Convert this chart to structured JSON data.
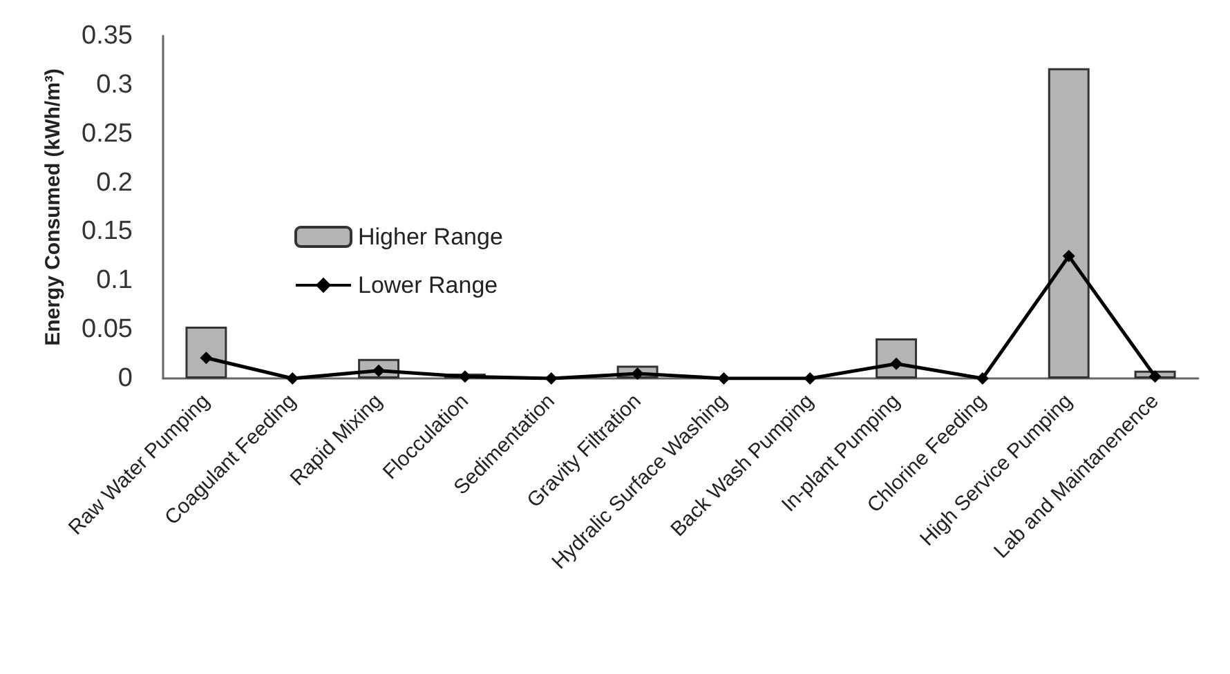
{
  "chart_data": {
    "type": "bar",
    "ylabel": "Energy Consumed (kWh/m³)",
    "categories": [
      "Raw Water Pumping",
      "Coagulant Feeding",
      "Rapid Mixing",
      "Flocculation",
      "Sedimentation",
      "Gravity Filtration",
      "Hydralic Surface Washing",
      "Back Wash Pumping",
      "In-plant Pumping",
      "Chlorine Feeding",
      "High Service Pumping",
      "Lab and Maintanenence"
    ],
    "series": [
      {
        "name": "Higher Range",
        "color": "#b4b4b4",
        "values": [
          0.053,
          0,
          0.02,
          0.005,
          0,
          0.013,
          0,
          0,
          0.041,
          0,
          0.317,
          0.008
        ]
      },
      {
        "name": "Lower Range",
        "type": "line",
        "color": "#000000",
        "values": [
          0.021,
          0,
          0.008,
          0.002,
          0,
          0.005,
          0,
          0,
          0.015,
          0,
          0.125,
          0.002
        ]
      }
    ],
    "ylim": [
      0,
      0.35
    ],
    "yticks": [
      0,
      0.05,
      0.1,
      0.15,
      0.2,
      0.25,
      0.3,
      0.35
    ],
    "grid": false,
    "legend": "left",
    "marker": "diamond",
    "line_style": "solid"
  }
}
